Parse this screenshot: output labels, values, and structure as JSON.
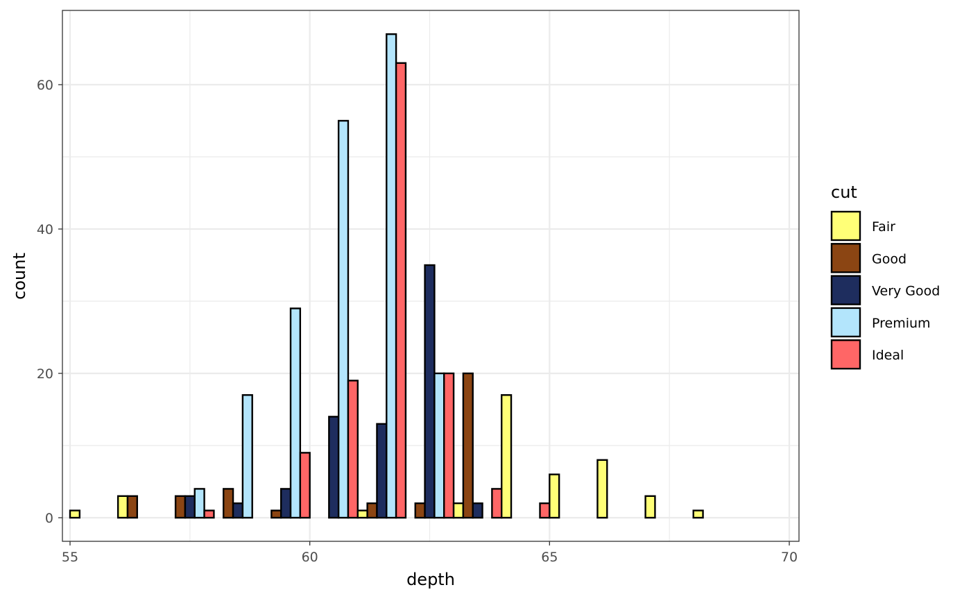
{
  "chart_data": {
    "type": "bar",
    "xlabel": "depth",
    "ylabel": "count",
    "xlim": [
      55,
      70
    ],
    "ylim": [
      0,
      67
    ],
    "x_ticks": [
      55,
      60,
      65,
      70
    ],
    "y_ticks": [
      0,
      20,
      40,
      60
    ],
    "x_ticks_labels": [
      "55",
      "60",
      "65",
      "70"
    ],
    "y_ticks_labels": [
      "0",
      "20",
      "40",
      "60"
    ],
    "grid": true,
    "legend": {
      "title": "cut",
      "position": "right"
    },
    "bin_centers": [
      55.5,
      56.5,
      57.5,
      58.5,
      59.5,
      60.5,
      61.5,
      62.5,
      63.5,
      64.5,
      65.5,
      66.5,
      67.5,
      68.5,
      69.5
    ],
    "series": [
      {
        "name": "Fair",
        "color": "#FFFF77",
        "values": [
          1,
          3,
          0,
          0,
          0,
          0,
          1,
          0,
          2,
          17,
          6,
          8,
          3,
          1,
          0
        ]
      },
      {
        "name": "Good",
        "color": "#8B4513",
        "values": [
          0,
          3,
          3,
          4,
          1,
          0,
          2,
          2,
          20,
          0,
          0,
          0,
          0,
          0,
          0
        ]
      },
      {
        "name": "Very Good",
        "color": "#1E2D5E",
        "values": [
          0,
          0,
          3,
          2,
          4,
          14,
          13,
          35,
          2,
          0,
          0,
          0,
          0,
          0,
          0
        ]
      },
      {
        "name": "Premium",
        "color": "#B3E5FC",
        "values": [
          0,
          0,
          4,
          17,
          29,
          55,
          67,
          20,
          0,
          0,
          0,
          0,
          0,
          0,
          0
        ]
      },
      {
        "name": "Ideal",
        "color": "#FF6666",
        "values": [
          0,
          0,
          1,
          0,
          9,
          19,
          63,
          20,
          4,
          2,
          0,
          0,
          0,
          0,
          0
        ]
      }
    ]
  }
}
